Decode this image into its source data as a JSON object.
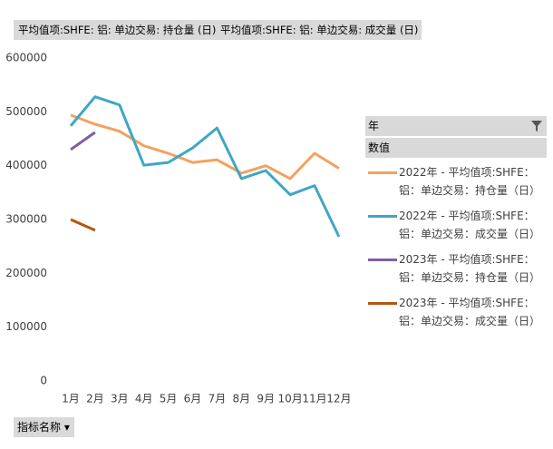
{
  "chart_data": {
    "type": "line",
    "field_buttons": [
      "平均值项:SHFE: 铝: 单边交易: 持仓量 (日)",
      "平均值项:SHFE: 铝: 单边交易: 成交量 (日)"
    ],
    "legend_title": "年",
    "legend_subtitle": "数值",
    "axis_field_button": "指标名称",
    "categories": [
      "1月",
      "2月",
      "3月",
      "4月",
      "5月",
      "6月",
      "7月",
      "8月",
      "9月",
      "10月",
      "11月",
      "12月"
    ],
    "series": [
      {
        "name": "2022年 - 平均值项:SHFE：铝：单边交易：持仓量（日）",
        "color": "#f4a15d",
        "values": [
          494000,
          477000,
          464000,
          437000,
          423000,
          406000,
          411000,
          386000,
          400000,
          376000,
          423000,
          395000
        ]
      },
      {
        "name": "2022年 - 平均值项:SHFE：铝：单边交易：成交量（日）",
        "color": "#3fa7c3",
        "values": [
          474000,
          528000,
          513000,
          401000,
          406000,
          433000,
          470000,
          376000,
          391000,
          346000,
          363000,
          268000
        ]
      },
      {
        "name": "2023年 - 平均值项:SHFE：铝：单边交易：持仓量（日）",
        "color": "#7e5fa5",
        "values": [
          430000,
          462000,
          null,
          null,
          null,
          null,
          null,
          null,
          null,
          null,
          null,
          null
        ]
      },
      {
        "name": "2023年 - 平均值项:SHFE：铝：单边交易：成交量（日）",
        "color": "#b4560f",
        "values": [
          300000,
          280000,
          null,
          null,
          null,
          null,
          null,
          null,
          null,
          null,
          null,
          null
        ]
      }
    ],
    "ylim": [
      0,
      600000
    ],
    "yticks": [
      0,
      100000,
      200000,
      300000,
      400000,
      500000,
      600000
    ],
    "grid": false
  }
}
